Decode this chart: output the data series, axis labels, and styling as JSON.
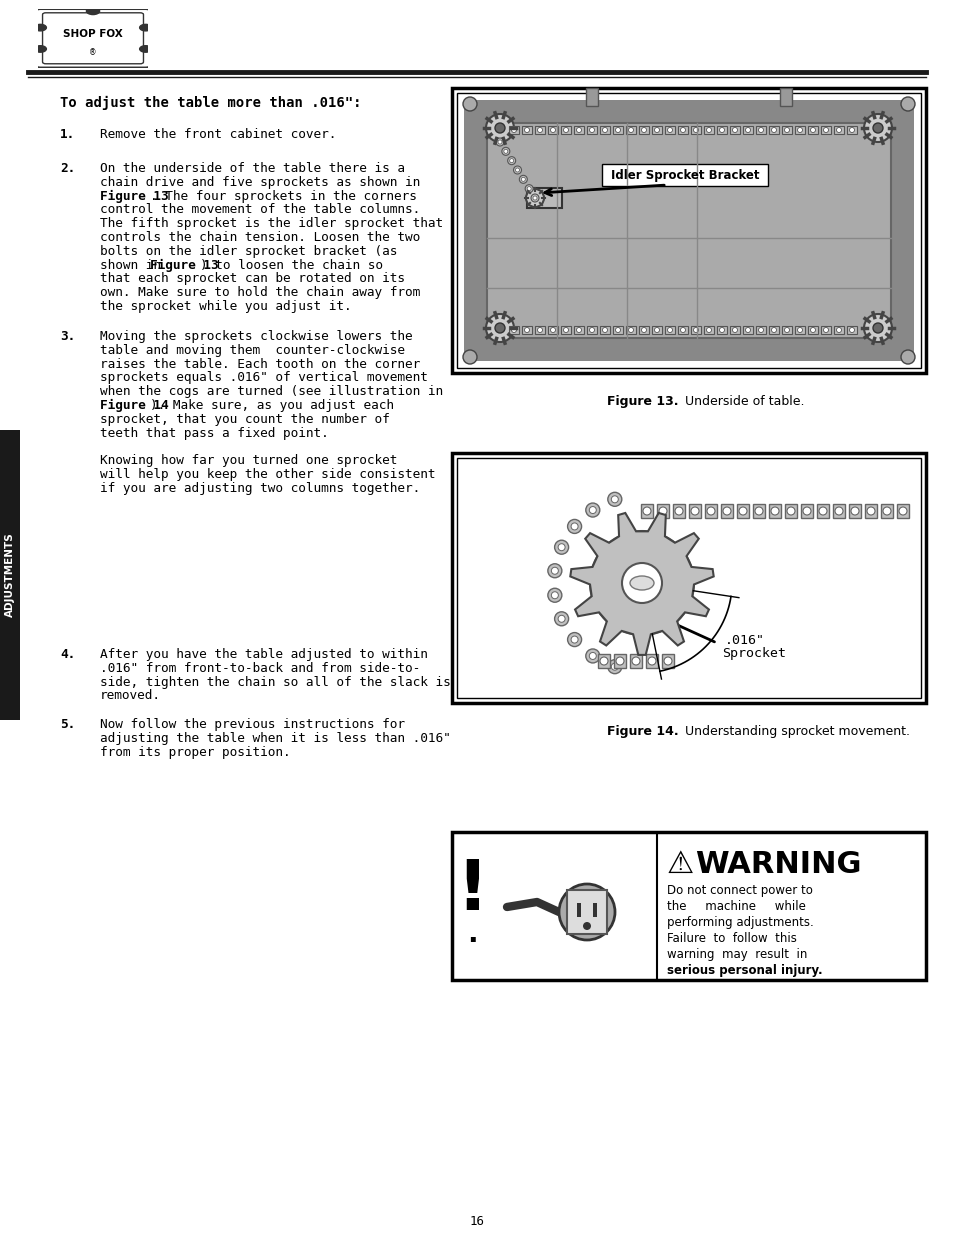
{
  "page_number": "16",
  "background_color": "#ffffff",
  "title_text": "To adjust the table more than .016\":",
  "sidebar_text": "ADJUSTMENTS",
  "sidebar_bg": "#1a1a1a",
  "fig13_caption_bold": "Figure 13.",
  "fig13_caption_rest": " Underside of table.",
  "fig14_caption_bold": "Figure 14.",
  "fig14_caption_rest": " Understanding sprocket movement.",
  "fig13_label": "Idler Sprocket Bracket",
  "fig14_label": ".016\"",
  "fig14_label2": "Sprocket",
  "warning_title": "WARNING",
  "warning_lines": [
    "Do not connect power to",
    "the     machine     while",
    "performing adjustments.",
    "Failure  to  follow  this",
    "warning  may  result  in",
    "serious personal injury."
  ],
  "item1_num": "1.",
  "item1_lines": [
    "Remove the front cabinet cover."
  ],
  "item2_num": "2.",
  "item2_lines": [
    "On the underside of the table there is a",
    "chain drive and five sprockets as shown in",
    "~Figure 13~. The four sprockets in the corners",
    "control the movement of the table columns.",
    "The fifth sprocket is the idler sprocket that",
    "controls the chain tension. Loosen the two",
    "bolts on the idler sprocket bracket (as",
    "shown in ~Figure 13~) to loosen the chain so",
    "that each sprocket can be rotated on its",
    "own. Make sure to hold the chain away from",
    "the sprocket while you adjust it."
  ],
  "item3_num": "3.",
  "item3_lines": [
    "Moving the sprockets clockwise lowers the",
    "table and moving them  counter-clockwise",
    "raises the table. Each tooth on the corner",
    "sprockets equals .016\" of vertical movement",
    "when the cogs are turned (see illustration in",
    "~Figure 14~). Make sure, as you adjust each",
    "sprocket, that you count the number of",
    "teeth that pass a fixed point.",
    "",
    "Knowing how far you turned one sprocket",
    "will help you keep the other side consistent",
    "if you are adjusting two columns together."
  ],
  "item4_num": "4.",
  "item4_lines": [
    "After you have the table adjusted to within",
    ".016\" from front-to-back and from side-to-",
    "side, tighten the chain so all of the slack is",
    "removed."
  ],
  "item5_num": "5.",
  "item5_lines": [
    "Now follow the previous instructions for",
    "adjusting the table when it is less than .016\"",
    "from its proper position."
  ]
}
